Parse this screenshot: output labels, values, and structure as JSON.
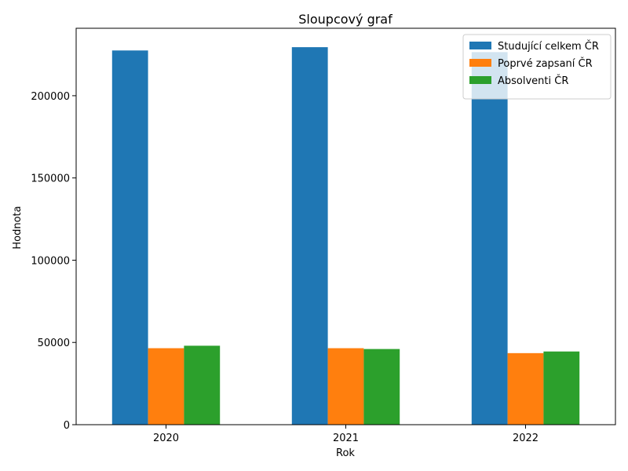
{
  "chart_data": {
    "type": "bar",
    "title": "Sloupcový graf",
    "xlabel": "Rok",
    "ylabel": "Hodnota",
    "categories": [
      "2020",
      "2021",
      "2022"
    ],
    "series": [
      {
        "name": "Studující celkem ČR",
        "color": "#1f77b4",
        "values": [
          227500,
          229500,
          226500
        ]
      },
      {
        "name": "Poprvé zapsaní ČR",
        "color": "#ff7f0e",
        "values": [
          46500,
          46500,
          43500
        ]
      },
      {
        "name": "Absolventi ČR",
        "color": "#2ca02c",
        "values": [
          48000,
          46000,
          44500
        ]
      }
    ],
    "ylim": [
      0,
      241000
    ],
    "yticks": [
      0,
      50000,
      100000,
      150000,
      200000
    ],
    "grid": false,
    "legend_position": "top-right"
  }
}
